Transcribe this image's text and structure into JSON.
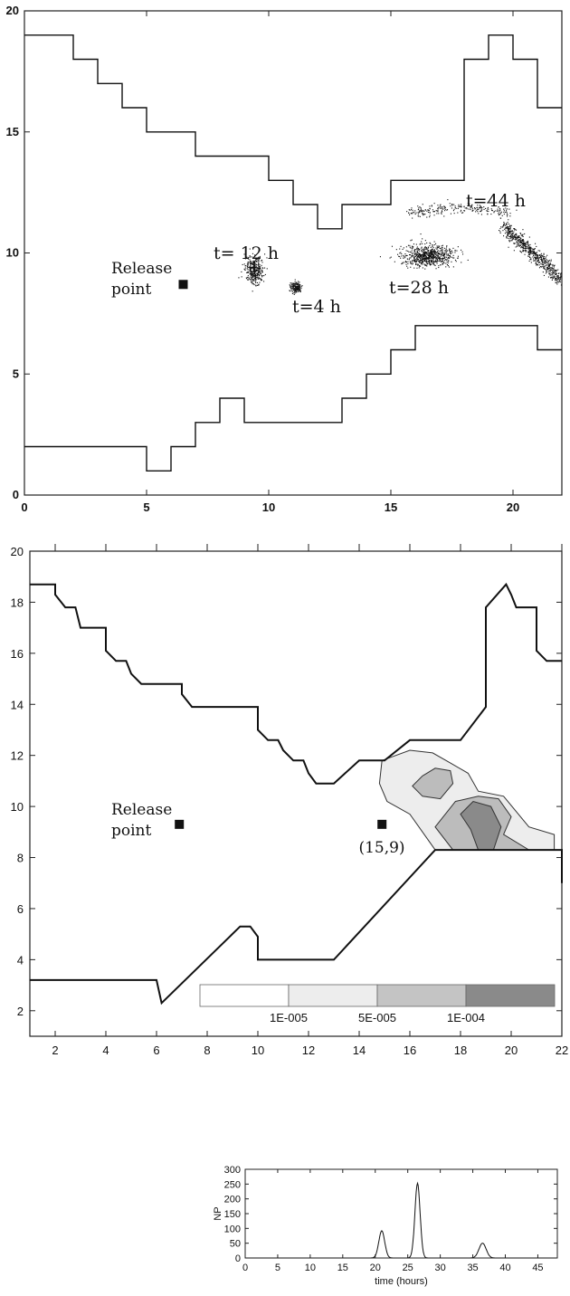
{
  "chart_data": [
    {
      "type": "scatter",
      "title": "",
      "xlabel": "",
      "ylabel": "",
      "xlim": [
        0,
        22
      ],
      "ylim": [
        0,
        20
      ],
      "xticks": [
        "0",
        "5",
        "10",
        "15",
        "20"
      ],
      "yticks": [
        "0",
        "5",
        "10",
        "15",
        "20"
      ],
      "upper_boundary": [
        [
          0,
          19
        ],
        [
          2,
          19
        ],
        [
          2,
          18
        ],
        [
          3,
          18
        ],
        [
          3,
          17
        ],
        [
          4,
          17
        ],
        [
          4,
          16
        ],
        [
          5,
          16
        ],
        [
          5,
          15
        ],
        [
          7,
          15
        ],
        [
          7,
          14
        ],
        [
          10,
          14
        ],
        [
          10,
          13
        ],
        [
          11,
          13
        ],
        [
          11,
          12
        ],
        [
          12,
          12
        ],
        [
          12,
          11
        ],
        [
          13,
          11
        ],
        [
          13,
          12
        ],
        [
          15,
          12
        ],
        [
          15,
          13
        ],
        [
          18,
          13
        ],
        [
          18,
          18
        ],
        [
          19,
          18
        ],
        [
          19,
          19
        ],
        [
          20,
          19
        ],
        [
          20,
          18
        ],
        [
          21,
          18
        ],
        [
          21,
          16
        ],
        [
          22,
          16
        ]
      ],
      "lower_boundary": [
        [
          0,
          2
        ],
        [
          5,
          2
        ],
        [
          5,
          1
        ],
        [
          6,
          1
        ],
        [
          6,
          2
        ],
        [
          7,
          2
        ],
        [
          7,
          3
        ],
        [
          8,
          3
        ],
        [
          8,
          4
        ],
        [
          9,
          4
        ],
        [
          9,
          3
        ],
        [
          13,
          3
        ],
        [
          13,
          4
        ],
        [
          14,
          4
        ],
        [
          14,
          5
        ],
        [
          15,
          5
        ],
        [
          15,
          6
        ],
        [
          16,
          6
        ],
        [
          16,
          7
        ],
        [
          21,
          7
        ],
        [
          21,
          6
        ],
        [
          22,
          6
        ]
      ],
      "release_point": {
        "x": 6.5,
        "y": 8.7,
        "label": "Release point"
      },
      "clouds": [
        {
          "label": "t=4 h",
          "x": 11.1,
          "y": 8.6
        },
        {
          "label": "t= 12 h",
          "x": 9.4,
          "y": 9.2
        },
        {
          "label": "t=28 h",
          "x": 16.4,
          "y": 9.8
        },
        {
          "label": "t=44 h",
          "x": 20.5,
          "y": 9.5
        }
      ]
    },
    {
      "type": "heatmap",
      "title": "",
      "xlabel": "",
      "ylabel": "",
      "xlim": [
        1,
        22
      ],
      "ylim": [
        1,
        20
      ],
      "xticks": [
        "2",
        "4",
        "6",
        "8",
        "10",
        "12",
        "14",
        "16",
        "18",
        "20",
        "22"
      ],
      "yticks": [
        "2",
        "4",
        "6",
        "8",
        "10",
        "12",
        "14",
        "16",
        "18",
        "20"
      ],
      "upper_boundary": [
        [
          1,
          18.7
        ],
        [
          2,
          18.7
        ],
        [
          2,
          18.3
        ],
        [
          2.4,
          17.8
        ],
        [
          2.8,
          17.8
        ],
        [
          3,
          17.0
        ],
        [
          4,
          17.0
        ],
        [
          4,
          16.1
        ],
        [
          4.4,
          15.7
        ],
        [
          4.8,
          15.7
        ],
        [
          5,
          15.2
        ],
        [
          5.4,
          14.8
        ],
        [
          7,
          14.8
        ],
        [
          7,
          14.4
        ],
        [
          7.4,
          13.9
        ],
        [
          10,
          13.9
        ],
        [
          10,
          13.0
        ],
        [
          10.4,
          12.6
        ],
        [
          10.8,
          12.6
        ],
        [
          11,
          12.2
        ],
        [
          11.4,
          11.8
        ],
        [
          11.8,
          11.8
        ],
        [
          12,
          11.3
        ],
        [
          12.3,
          10.9
        ],
        [
          13,
          10.9
        ],
        [
          14,
          11.8
        ],
        [
          15,
          11.8
        ],
        [
          16,
          12.6
        ],
        [
          18,
          12.6
        ],
        [
          19,
          13.9
        ],
        [
          19,
          17.8
        ],
        [
          19.8,
          18.7
        ],
        [
          20,
          18.3
        ],
        [
          20.2,
          17.8
        ],
        [
          21,
          17.8
        ],
        [
          21,
          16.1
        ],
        [
          21.4,
          15.7
        ],
        [
          22,
          15.7
        ]
      ],
      "lower_boundary": [
        [
          1,
          3.2
        ],
        [
          6,
          3.2
        ],
        [
          6.2,
          2.3
        ],
        [
          9.3,
          5.3
        ],
        [
          9.7,
          5.3
        ],
        [
          10,
          4.9
        ],
        [
          10,
          4.0
        ],
        [
          13,
          4.0
        ],
        [
          17,
          8.3
        ],
        [
          22,
          8.3
        ],
        [
          22,
          7.0
        ]
      ],
      "release_point": {
        "x": 6.9,
        "y": 9.3,
        "label": "Release point"
      },
      "receptor": {
        "x": 14.9,
        "y": 9.3,
        "label": "(15,9)"
      },
      "contours": [
        {
          "level": "1E-005",
          "color": "#ededed",
          "points": [
            [
              14.9,
              11.8
            ],
            [
              16.0,
              12.2
            ],
            [
              16.9,
              12.1
            ],
            [
              17.6,
              11.7
            ],
            [
              18.3,
              11.3
            ],
            [
              18.7,
              10.6
            ],
            [
              19.7,
              10.4
            ],
            [
              20.7,
              9.2
            ],
            [
              21.7,
              8.9
            ],
            [
              21.7,
              8.3
            ],
            [
              17.0,
              8.3
            ],
            [
              16.0,
              9.7
            ],
            [
              15.1,
              10.2
            ],
            [
              14.8,
              10.9
            ]
          ]
        },
        {
          "level": "5E-005",
          "color": "#bcbcbc",
          "points": [
            [
              17.0,
              9.2
            ],
            [
              17.8,
              10.2
            ],
            [
              18.7,
              10.4
            ],
            [
              19.5,
              10.3
            ],
            [
              20.0,
              9.6
            ],
            [
              19.7,
              8.9
            ],
            [
              20.7,
              8.3
            ],
            [
              17.7,
              8.3
            ]
          ]
        },
        {
          "level": "5E-005",
          "color": "#bcbcbc",
          "points": [
            [
              16.5,
              11.2
            ],
            [
              17.0,
              11.5
            ],
            [
              17.6,
              11.4
            ],
            [
              17.7,
              10.9
            ],
            [
              17.2,
              10.3
            ],
            [
              16.5,
              10.4
            ],
            [
              16.1,
              10.8
            ]
          ]
        },
        {
          "level": "1E-004",
          "color": "#8a8a8a",
          "points": [
            [
              18.0,
              9.7
            ],
            [
              18.5,
              10.2
            ],
            [
              19.2,
              10.0
            ],
            [
              19.6,
              9.2
            ],
            [
              19.3,
              8.3
            ],
            [
              18.7,
              8.3
            ],
            [
              18.4,
              9.1
            ]
          ]
        }
      ],
      "legend": {
        "labels": [
          "1E-005",
          "5E-005",
          "1E-004"
        ],
        "colors": [
          "#ffffff",
          "#ededed",
          "#c4c4c4",
          "#8a8a8a"
        ]
      }
    },
    {
      "type": "line",
      "title": "",
      "xlabel": "time (hours)",
      "ylabel": "NP",
      "xlim": [
        0,
        48
      ],
      "ylim": [
        0,
        300
      ],
      "xticks": [
        "0",
        "5",
        "10",
        "15",
        "20",
        "25",
        "30",
        "35",
        "40",
        "45"
      ],
      "yticks": [
        "0",
        "50",
        "100",
        "150",
        "200",
        "250",
        "300"
      ],
      "peaks": [
        {
          "time": 21.0,
          "value": 92
        },
        {
          "time": 26.5,
          "value": 253
        },
        {
          "time": 36.5,
          "value": 50
        }
      ],
      "peak_sigma": [
        0.45,
        0.4,
        0.55
      ]
    }
  ]
}
